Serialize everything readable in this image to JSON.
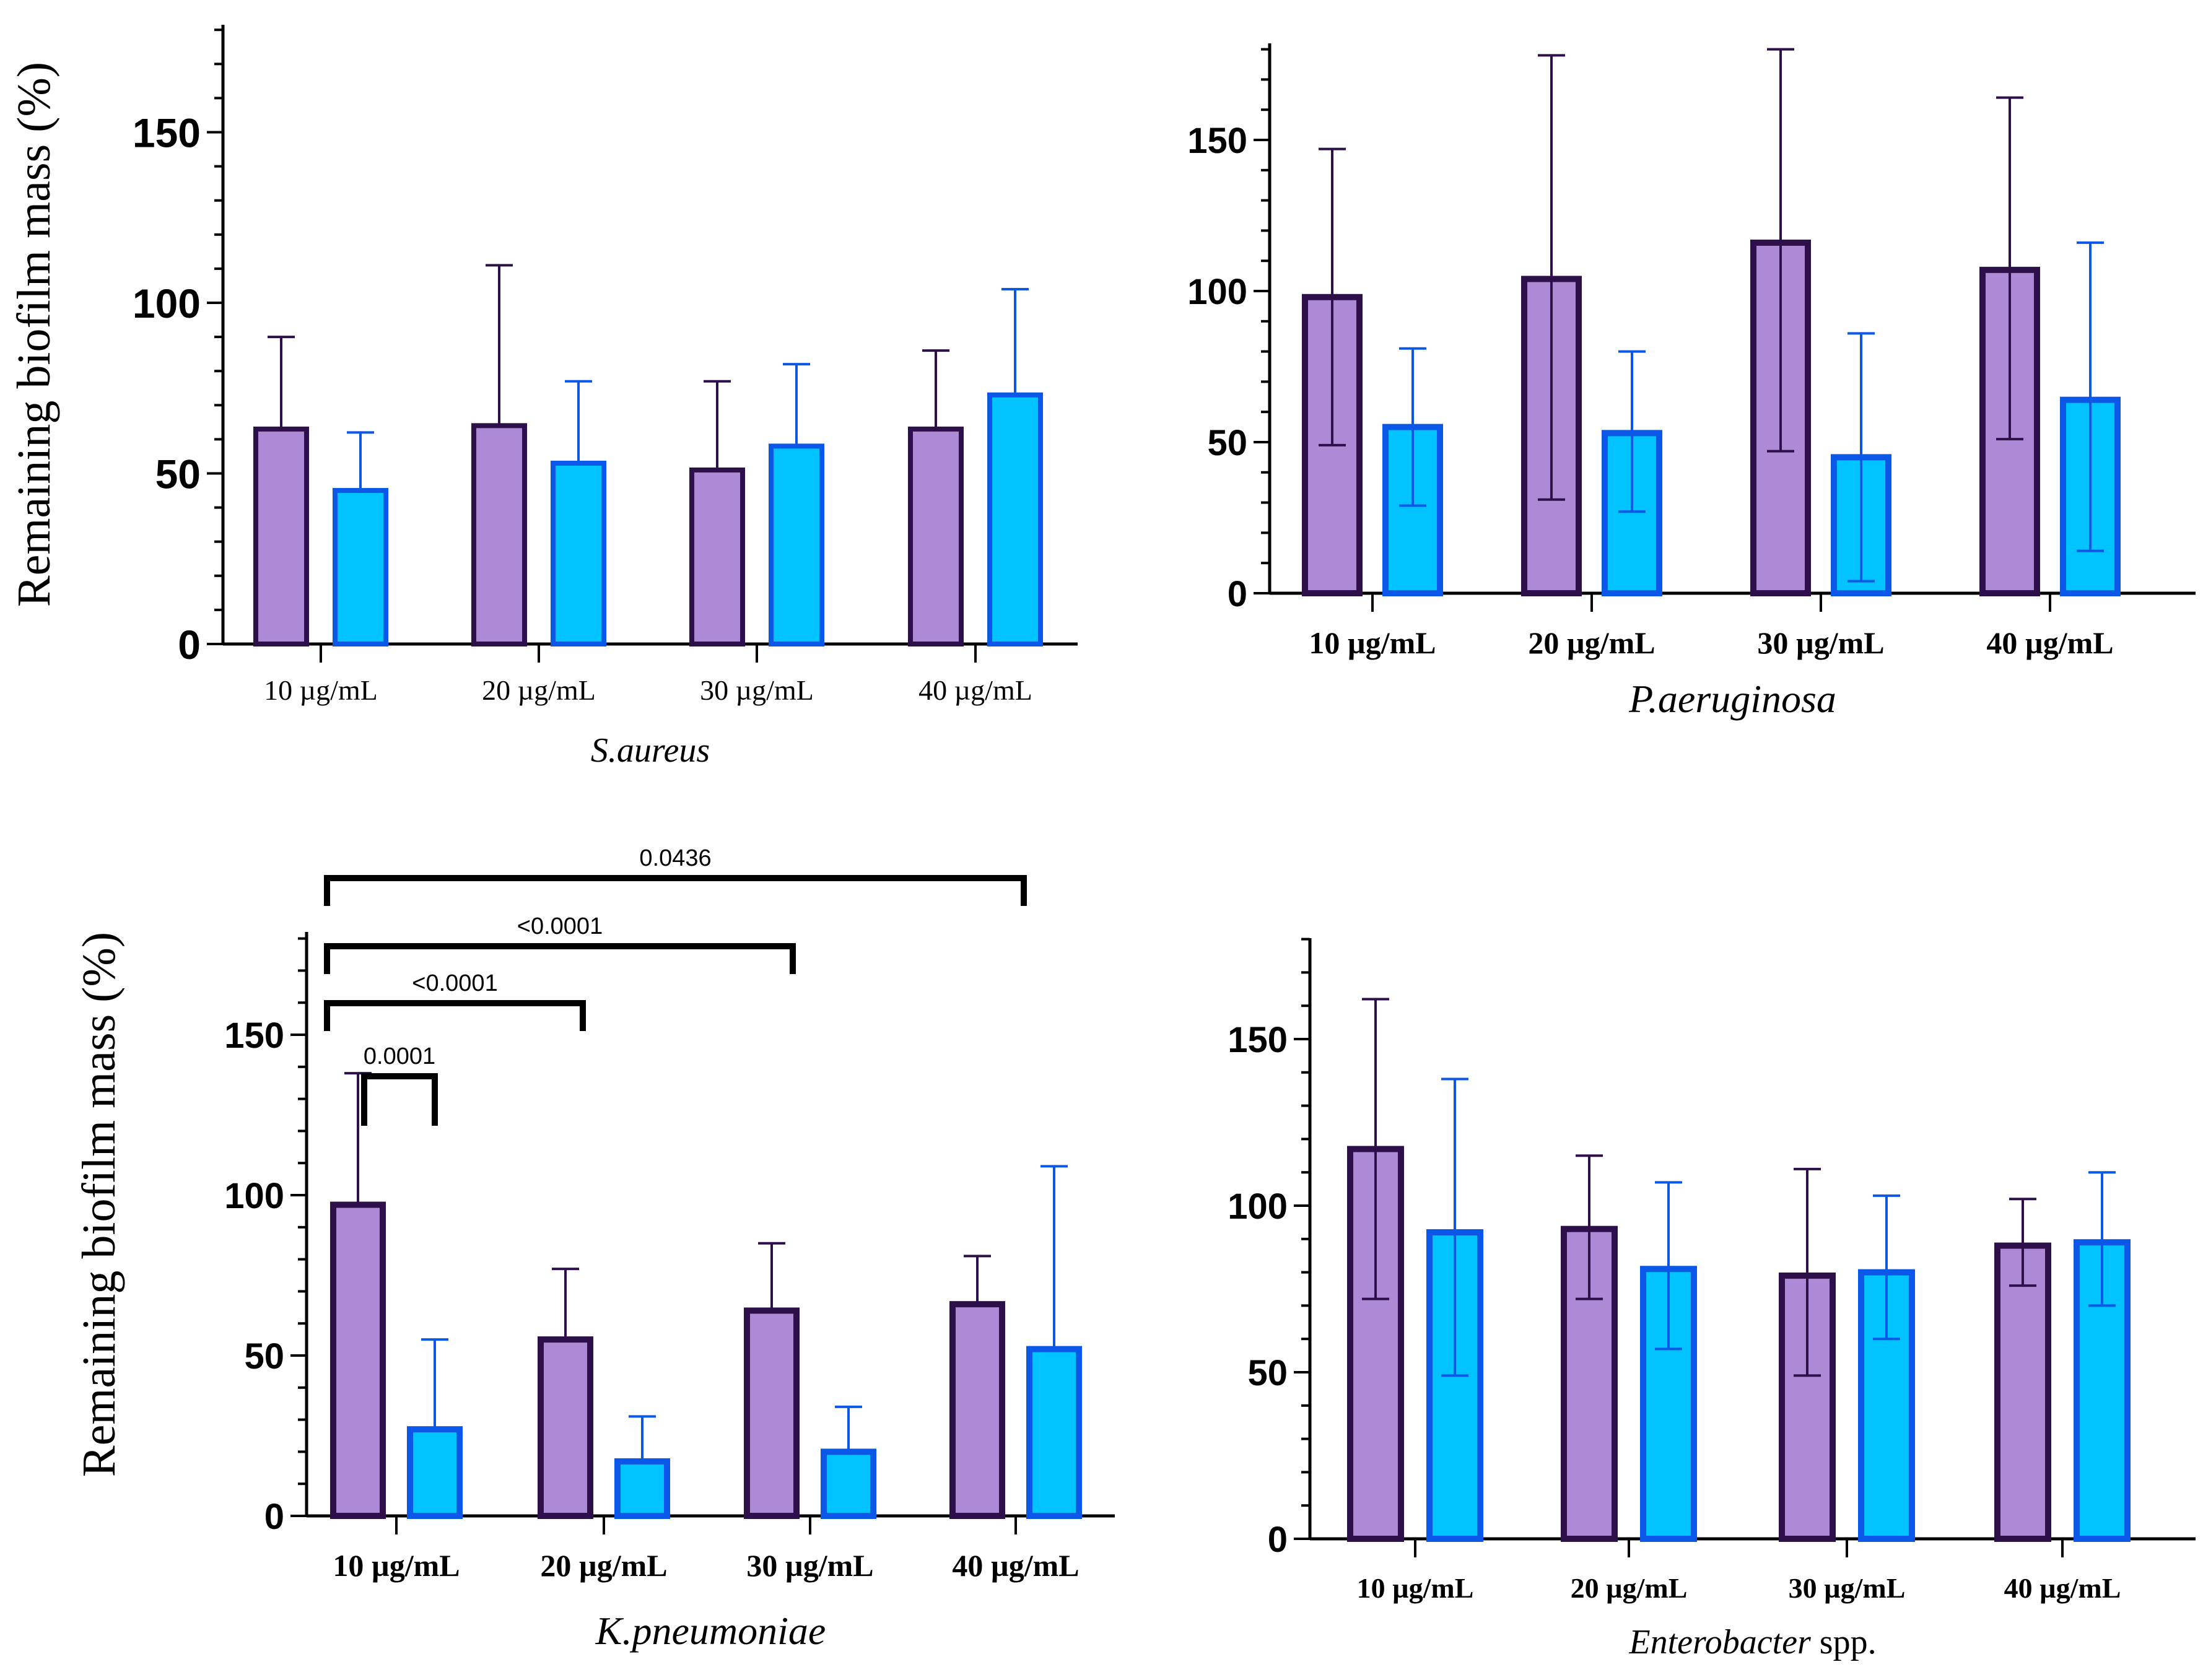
{
  "colors": {
    "purple_fill": "#ae8ad6",
    "purple_edge": "#2d0f4a",
    "blue_fill": "#00c3ff",
    "blue_edge": "#0b58e8",
    "axis": "#000000"
  },
  "chart_data": [
    {
      "type": "bar",
      "title": "",
      "species": "S.aureus",
      "ylabel": "Remaining biofilm mass (%)",
      "xlabel": "S.aureus",
      "ylim": [
        0,
        180
      ],
      "yticks": [
        "0",
        "50",
        "100",
        "150"
      ],
      "categories": [
        "10 µg/mL",
        "20 µg/mL",
        "30 µg/mL",
        "40 µg/mL"
      ],
      "series": [
        {
          "name": "purple",
          "values": [
            63,
            64,
            51,
            63
          ],
          "errors": [
            90,
            111,
            77,
            86
          ]
        },
        {
          "name": "blue",
          "values": [
            45,
            53,
            58,
            73
          ],
          "errors": [
            62,
            77,
            82,
            104
          ]
        }
      ],
      "significance": []
    },
    {
      "type": "bar",
      "title": "",
      "species": "P.aeruginosa",
      "ylabel": "",
      "xlabel": "P.aeruginosa",
      "ylim": [
        0,
        180
      ],
      "yticks": [
        "0",
        "50",
        "100",
        "150"
      ],
      "categories": [
        "10 µg/mL",
        "20 µg/mL",
        "30 µg/mL",
        "40 µg/mL"
      ],
      "series": [
        {
          "name": "purple",
          "values": [
            98,
            104,
            116,
            107
          ],
          "errors": [
            147,
            178,
            180,
            164
          ],
          "errors_low": [
            49,
            31,
            47,
            51
          ]
        },
        {
          "name": "blue",
          "values": [
            55,
            53,
            45,
            64
          ],
          "errors": [
            81,
            80,
            86,
            116
          ],
          "errors_low": [
            29,
            27,
            4,
            14
          ]
        }
      ],
      "significance": []
    },
    {
      "type": "bar",
      "title": "",
      "species": "K.pneumoniae",
      "ylabel": "Remaining biofilm mass (%)",
      "xlabel": "K.pneumoniae",
      "ylim": [
        0,
        180
      ],
      "yticks": [
        "0",
        "50",
        "100",
        "150"
      ],
      "categories": [
        "10 µg/mL",
        "20 µg/mL",
        "30 µg/mL",
        "40 µg/mL"
      ],
      "series": [
        {
          "name": "purple",
          "values": [
            97,
            55,
            64,
            66
          ],
          "errors": [
            138,
            77,
            85,
            81
          ]
        },
        {
          "name": "blue",
          "values": [
            27,
            17,
            20,
            52
          ],
          "errors": [
            55,
            31,
            34,
            109
          ]
        }
      ],
      "significance": [
        {
          "label": "0.0001",
          "from_group": 0,
          "to_group": 0,
          "level": 0
        },
        {
          "label": "<0.0001",
          "from_group": 0,
          "to_group": 1,
          "level": 1
        },
        {
          "label": "<0.0001",
          "from_group": 0,
          "to_group": 2,
          "level": 2
        },
        {
          "label": "0.0436",
          "from_group": 0,
          "to_group": 3,
          "level": 3
        }
      ]
    },
    {
      "type": "bar",
      "title": "",
      "species": "Enterobacter",
      "species_suffix": " spp.",
      "ylabel": "",
      "xlabel": "Enterobacter spp.",
      "ylim": [
        0,
        180
      ],
      "yticks": [
        "0",
        "50",
        "100",
        "150"
      ],
      "categories": [
        "10 µg/mL",
        "20 µg/mL",
        "30 µg/mL",
        "40 µg/mL"
      ],
      "series": [
        {
          "name": "purple",
          "values": [
            117,
            93,
            79,
            88
          ],
          "errors": [
            162,
            115,
            111,
            102
          ],
          "errors_low": [
            72,
            72,
            49,
            76
          ]
        },
        {
          "name": "blue",
          "values": [
            92,
            81,
            80,
            89
          ],
          "errors": [
            138,
            107,
            103,
            110
          ],
          "errors_low": [
            49,
            57,
            60,
            70
          ]
        }
      ],
      "significance": []
    }
  ]
}
